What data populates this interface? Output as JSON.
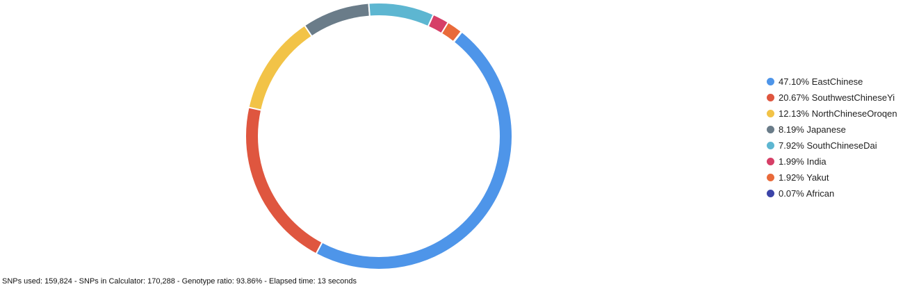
{
  "chart_data": {
    "type": "pie",
    "donut": true,
    "title": "",
    "legend_position": "right",
    "slices": [
      {
        "label": "EastChinese",
        "value": 47.1,
        "display": "47.10% EastChinese",
        "color": "#4e95e9"
      },
      {
        "label": "SouthwestChineseYi",
        "value": 20.67,
        "display": "20.67% SouthwestChineseYi",
        "color": "#df563f"
      },
      {
        "label": "NorthChineseOroqen",
        "value": 12.13,
        "display": "12.13% NorthChineseOroqen",
        "color": "#f2c347"
      },
      {
        "label": "Japanese",
        "value": 8.19,
        "display": "8.19% Japanese",
        "color": "#6a7c89"
      },
      {
        "label": "SouthChineseDai",
        "value": 7.92,
        "display": "7.92% SouthChineseDai",
        "color": "#5db6d1"
      },
      {
        "label": "India",
        "value": 1.99,
        "display": "1.99% India",
        "color": "#d63f67"
      },
      {
        "label": "Yakut",
        "value": 1.92,
        "display": "1.92% Yakut",
        "color": "#e96a3a"
      },
      {
        "label": "African",
        "value": 0.07,
        "display": "0.07% African",
        "color": "#3c44a8"
      }
    ]
  },
  "footer": {
    "text": "SNPs used: 159,824 - SNPs in Calculator: 170,288 - Genotype ratio: 93.86% - Elapsed time: 13 seconds"
  }
}
